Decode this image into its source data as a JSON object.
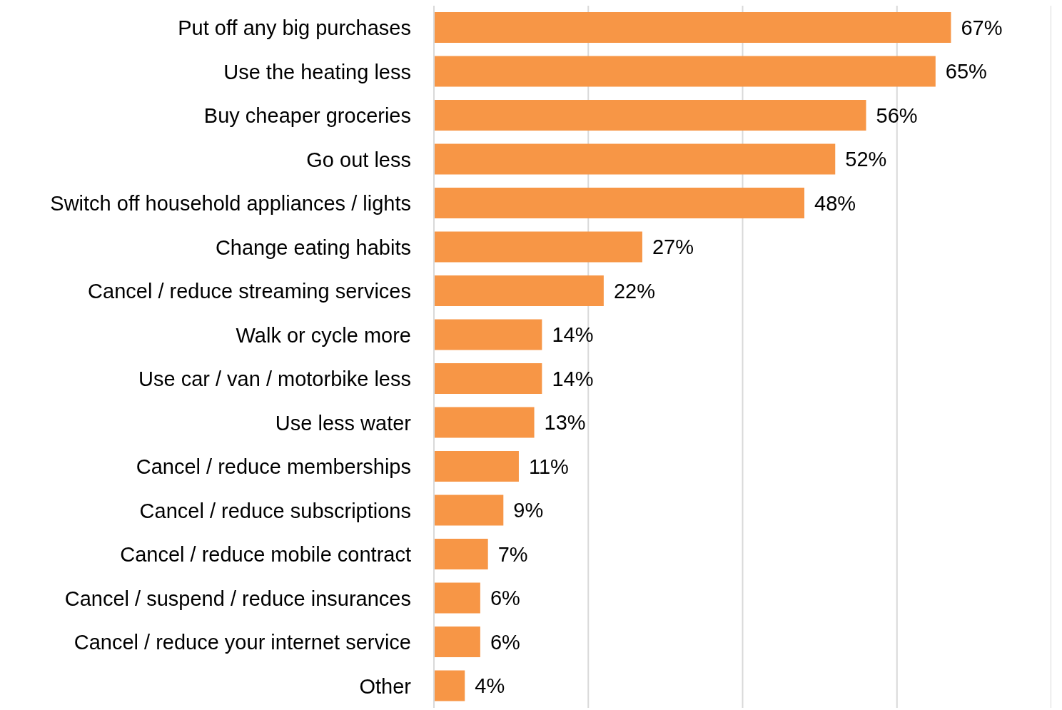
{
  "chart_data": {
    "type": "bar",
    "orientation": "horizontal",
    "categories": [
      "Put off any big purchases",
      "Use the heating less",
      "Buy cheaper groceries",
      "Go out less",
      "Switch off household appliances / lights",
      "Change eating habits",
      "Cancel / reduce streaming services",
      "Walk or cycle more",
      "Use car / van / motorbike less",
      "Use less water",
      "Cancel / reduce memberships",
      "Cancel / reduce subscriptions",
      "Cancel / reduce mobile contract",
      "Cancel / suspend / reduce  insurances",
      "Cancel / reduce your internet service",
      "Other"
    ],
    "values": [
      67,
      65,
      56,
      52,
      48,
      27,
      22,
      14,
      14,
      13,
      11,
      9,
      7,
      6,
      6,
      4
    ],
    "value_labels": [
      "67%",
      "65%",
      "56%",
      "52%",
      "48%",
      "27%",
      "22%",
      "14%",
      "14%",
      "13%",
      "11%",
      "9%",
      "7%",
      "6%",
      "6%",
      "4%"
    ],
    "color": "#f79646",
    "grid": "x",
    "tick_labels": "y"
  }
}
